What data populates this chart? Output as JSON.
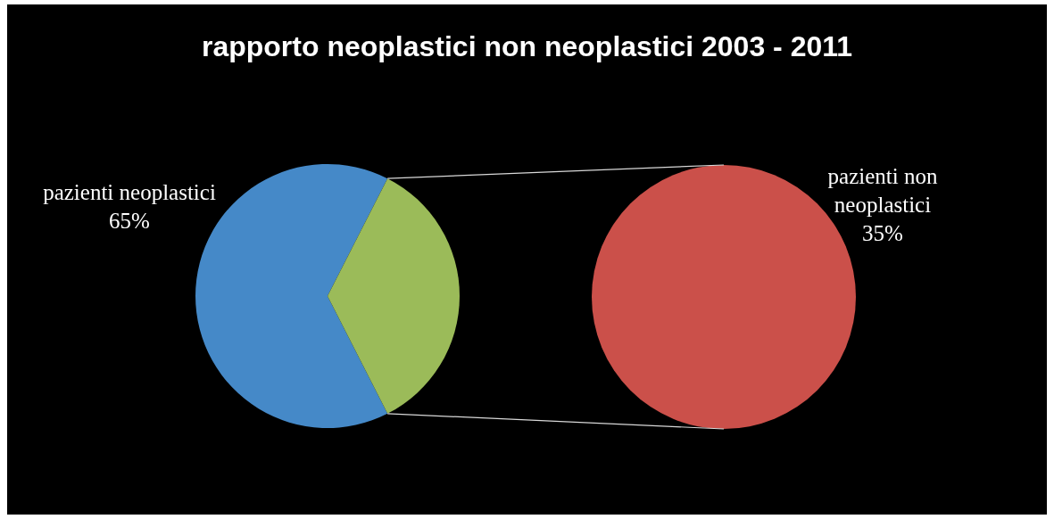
{
  "chart_data": [
    {
      "type": "pie",
      "title": "rapporto neoplastici non neoplastici 2003 - 2011",
      "categories": [
        "pazienti neoplastici",
        null
      ],
      "values": [
        65,
        35
      ],
      "colors": [
        "#4589c8",
        "#9bbb59"
      ],
      "value_labels": [
        "65%",
        null
      ]
    },
    {
      "type": "pie",
      "categories": [
        "pazienti non neoplastici"
      ],
      "values": [
        35
      ],
      "colors": [
        "#cb504a"
      ],
      "value_labels": [
        "35%"
      ]
    }
  ]
}
